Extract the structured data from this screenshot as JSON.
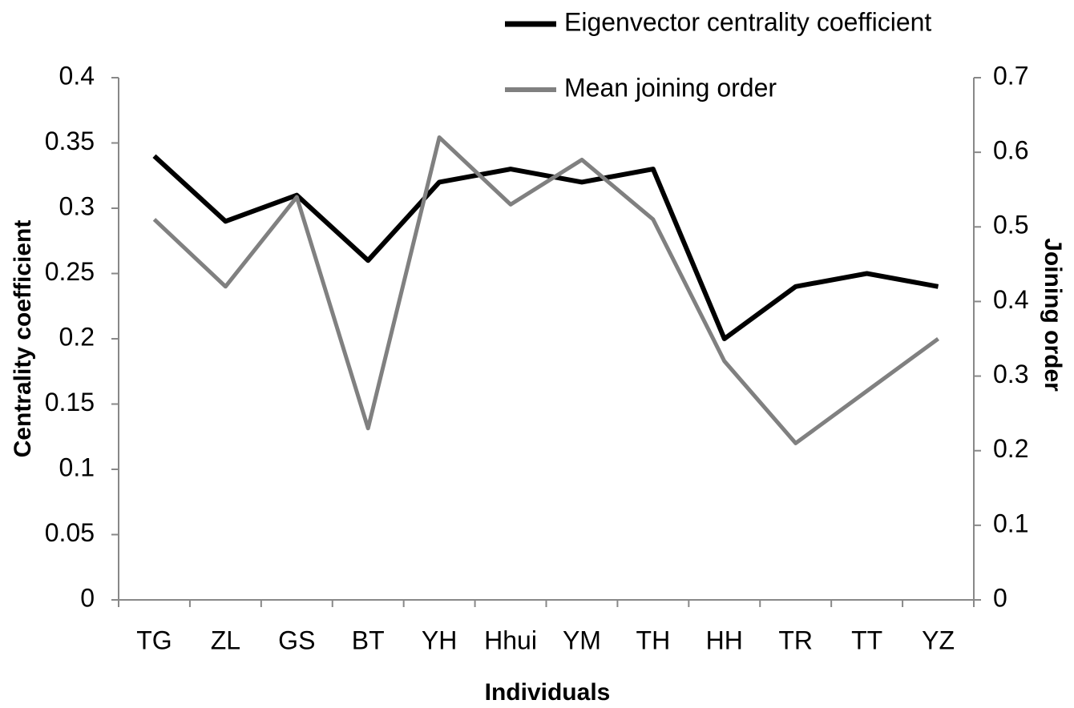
{
  "chart_data": {
    "type": "line",
    "xlabel": "Individuals",
    "ylabel": "Centrality coefficient",
    "y2label": "Joining order",
    "categories": [
      "TG",
      "ZL",
      "GS",
      "BT",
      "YH",
      "Hhui",
      "YM",
      "TH",
      "HH",
      "TR",
      "TT",
      "YZ"
    ],
    "series": [
      {
        "name": "Eigenvector centrality coefficient",
        "color": "#000000",
        "values": [
          0.34,
          0.29,
          0.31,
          0.26,
          0.32,
          0.33,
          0.32,
          0.33,
          0.2,
          0.24,
          0.25,
          0.24
        ]
      },
      {
        "name": "Mean joining order",
        "color": "#808080",
        "axis": "y2",
        "values": [
          0.51,
          0.42,
          0.54,
          0.23,
          0.62,
          0.53,
          0.59,
          0.51,
          0.32,
          0.21,
          0.28,
          0.35
        ]
      }
    ],
    "ylim": [
      0,
      0.4
    ],
    "yticks": [
      0,
      0.05,
      0.1,
      0.15,
      0.2,
      0.25,
      0.3,
      0.35,
      0.4
    ],
    "y2lim": [
      0,
      0.7
    ],
    "y2ticks": [
      0,
      0.1,
      0.2,
      0.3,
      0.4,
      0.5,
      0.6,
      0.7
    ],
    "legend": "top",
    "grid": false
  }
}
